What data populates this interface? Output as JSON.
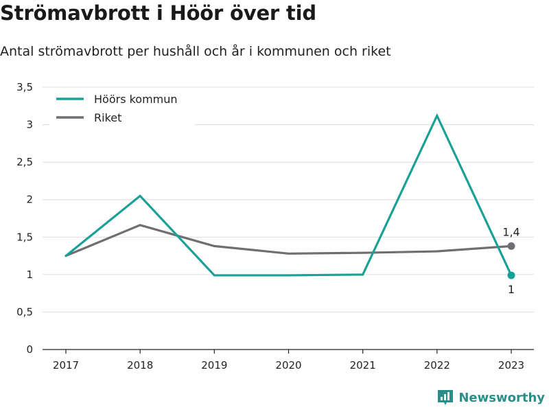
{
  "title": "Strömavbrott i Höör över tid",
  "subtitle": "Antal strömavbrott per hushåll och år i kommunen och riket",
  "brand": {
    "name": "Newsworthy",
    "icon": "newsworthy-logo-icon",
    "color": "#2a8f88"
  },
  "chart_data": {
    "type": "line",
    "title": "Strömavbrott i Höör över tid",
    "subtitle": "Antal strömavbrott per hushåll och år i kommunen och riket",
    "xlabel": "",
    "ylabel": "",
    "categories": [
      "2017",
      "2018",
      "2019",
      "2020",
      "2021",
      "2022",
      "2023"
    ],
    "ylim": [
      0,
      3.5
    ],
    "yticks": [
      0,
      0.5,
      1,
      1.5,
      2,
      2.5,
      3,
      3.5
    ],
    "ytick_labels": [
      "0",
      "0,5",
      "1",
      "1,5",
      "2",
      "2,5",
      "3",
      "3,5"
    ],
    "grid": true,
    "legend_position": "top-left",
    "series": [
      {
        "name": "Höörs kommun",
        "color": "#1aa197",
        "values": [
          1.25,
          2.05,
          0.99,
          0.99,
          1.0,
          3.12,
          0.99
        ],
        "end_label": "1"
      },
      {
        "name": "Riket",
        "color": "#6e6e73",
        "values": [
          1.25,
          1.66,
          1.38,
          1.28,
          1.29,
          1.31,
          1.38
        ],
        "end_label": "1,4"
      }
    ]
  }
}
